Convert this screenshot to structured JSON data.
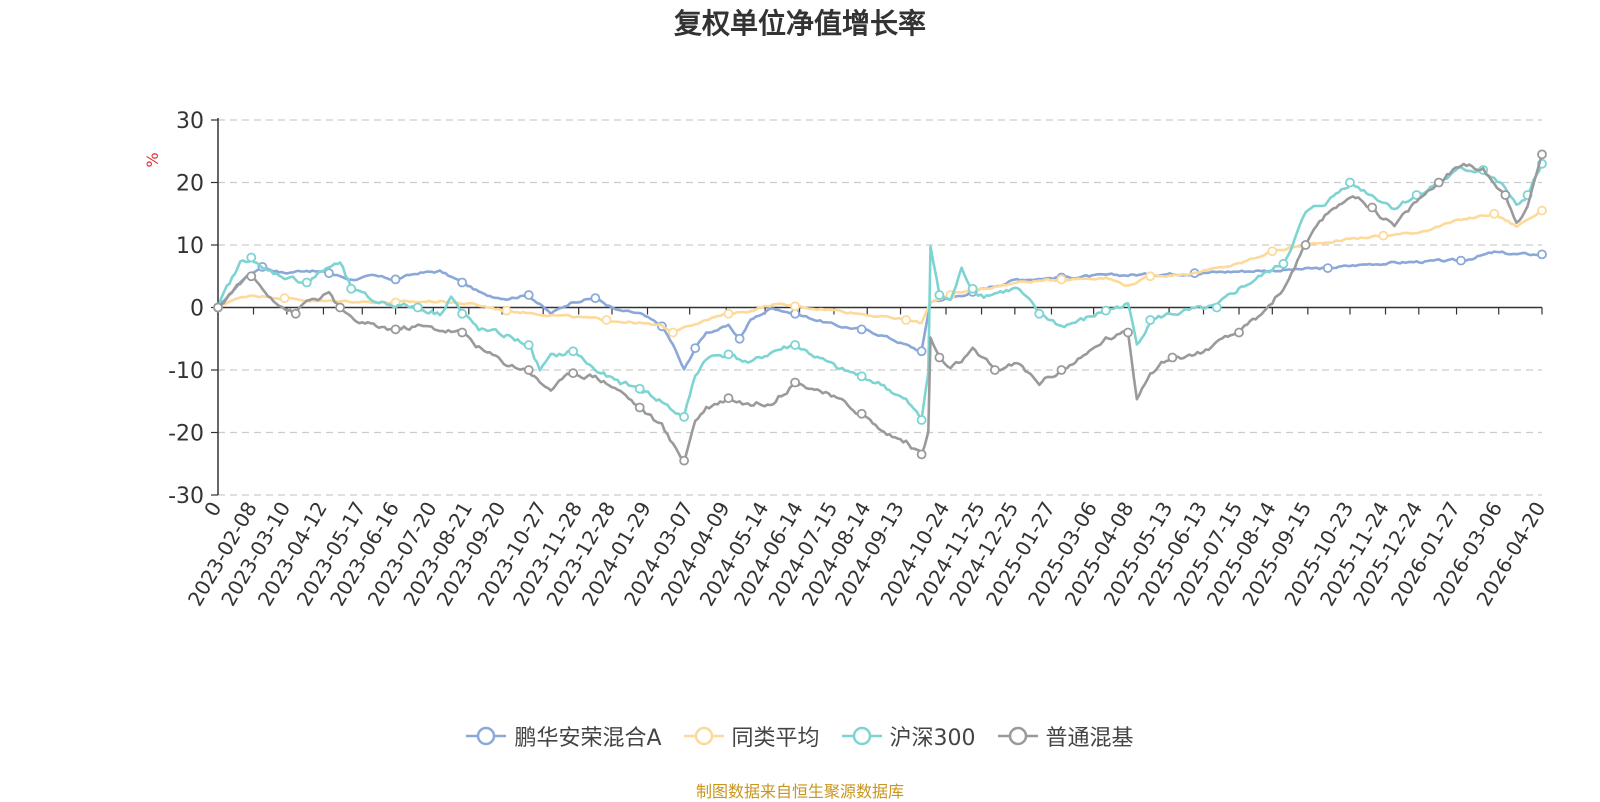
{
  "chart_data": {
    "type": "line",
    "title": "复权单位净值增长率",
    "ylabel": "%",
    "ylim": [
      -30,
      30
    ],
    "yticks": [
      30,
      20,
      10,
      0,
      -10,
      -20,
      -30
    ],
    "grid": true,
    "legend_position": "bottom",
    "x_start": 0,
    "x_end": 1193,
    "x_ticks": [
      "0",
      "2023-02-08",
      "2023-03-10",
      "2023-04-12",
      "2023-05-17",
      "2023-06-16",
      "2023-07-20",
      "2023-08-21",
      "2023-09-20",
      "2023-10-27",
      "2023-11-28",
      "2023-12-28",
      "2024-01-29",
      "2024-03-07",
      "2024-04-09",
      "2024-05-14",
      "2024-06-14",
      "2024-07-15",
      "2024-08-14",
      "2024-09-13",
      "2024-10-24",
      "2024-11-25",
      "2024-12-25",
      "2025-01-27",
      "2025-03-06",
      "2025-04-08",
      "2025-05-13",
      "2025-06-13",
      "2025-07-15",
      "2025-08-14",
      "2025-09-15",
      "2025-10-23",
      "2025-11-24",
      "2025-12-24",
      "2026-01-27",
      "2026-03-06",
      "2026-04-20"
    ],
    "x_tick_positions": [
      0,
      32,
      62,
      95,
      130,
      160,
      194,
      226,
      256,
      293,
      325,
      355,
      387,
      425,
      458,
      493,
      524,
      555,
      585,
      615,
      656,
      688,
      718,
      751,
      789,
      822,
      857,
      888,
      920,
      950,
      982,
      1020,
      1052,
      1082,
      1116,
      1154,
      1193
    ],
    "series": [
      {
        "name": "鹏华安荣混合A",
        "color": "#8aa8d8",
        "points": [
          [
            0,
            0
          ],
          [
            15,
            3
          ],
          [
            25,
            5
          ],
          [
            40,
            6.5
          ],
          [
            60,
            5.5
          ],
          [
            80,
            6
          ],
          [
            100,
            5.5
          ],
          [
            120,
            4.5
          ],
          [
            140,
            5
          ],
          [
            160,
            4.5
          ],
          [
            180,
            5.5
          ],
          [
            200,
            5.8
          ],
          [
            220,
            4
          ],
          [
            240,
            2
          ],
          [
            260,
            1.5
          ],
          [
            280,
            2
          ],
          [
            300,
            -1
          ],
          [
            320,
            1
          ],
          [
            340,
            1.5
          ],
          [
            360,
            -0.5
          ],
          [
            380,
            -1
          ],
          [
            400,
            -3
          ],
          [
            410,
            -6
          ],
          [
            420,
            -10
          ],
          [
            430,
            -6.5
          ],
          [
            440,
            -4
          ],
          [
            460,
            -3
          ],
          [
            470,
            -5
          ],
          [
            480,
            -2
          ],
          [
            500,
            0
          ],
          [
            520,
            -1
          ],
          [
            540,
            -2
          ],
          [
            560,
            -3
          ],
          [
            580,
            -3.5
          ],
          [
            600,
            -4.5
          ],
          [
            620,
            -6
          ],
          [
            634,
            -7
          ],
          [
            642,
            1
          ],
          [
            660,
            1.5
          ],
          [
            680,
            2.5
          ],
          [
            700,
            3.5
          ],
          [
            720,
            4.5
          ],
          [
            760,
            4.8
          ],
          [
            800,
            5.1
          ],
          [
            840,
            5.3
          ],
          [
            880,
            5.5
          ],
          [
            920,
            5.8
          ],
          [
            960,
            6
          ],
          [
            1000,
            6.3
          ],
          [
            1040,
            7
          ],
          [
            1080,
            7.3
          ],
          [
            1120,
            7.5
          ],
          [
            1150,
            8.8
          ],
          [
            1170,
            8.5
          ],
          [
            1193,
            8.5
          ]
        ]
      },
      {
        "name": "同类平均",
        "color": "#fdd99a",
        "points": [
          [
            0,
            0
          ],
          [
            10,
            1
          ],
          [
            30,
            2
          ],
          [
            60,
            1.5
          ],
          [
            90,
            1
          ],
          [
            120,
            1
          ],
          [
            160,
            0.8
          ],
          [
            200,
            1
          ],
          [
            230,
            0.5
          ],
          [
            260,
            -0.5
          ],
          [
            290,
            -1
          ],
          [
            320,
            -1.5
          ],
          [
            350,
            -2
          ],
          [
            380,
            -2.5
          ],
          [
            400,
            -3
          ],
          [
            410,
            -4
          ],
          [
            420,
            -3
          ],
          [
            440,
            -2
          ],
          [
            460,
            -1
          ],
          [
            480,
            -0.5
          ],
          [
            500,
            0.5
          ],
          [
            520,
            0.2
          ],
          [
            560,
            -0.5
          ],
          [
            600,
            -1.5
          ],
          [
            620,
            -2
          ],
          [
            634,
            -2.5
          ],
          [
            642,
            1
          ],
          [
            660,
            2
          ],
          [
            690,
            3
          ],
          [
            720,
            4
          ],
          [
            760,
            4.5
          ],
          [
            800,
            4.8
          ],
          [
            820,
            3.5
          ],
          [
            840,
            5
          ],
          [
            880,
            5.5
          ],
          [
            920,
            7
          ],
          [
            950,
            9
          ],
          [
            980,
            10
          ],
          [
            1020,
            11
          ],
          [
            1050,
            11.5
          ],
          [
            1080,
            12
          ],
          [
            1120,
            14
          ],
          [
            1150,
            15
          ],
          [
            1170,
            13
          ],
          [
            1193,
            15.5
          ]
        ]
      },
      {
        "name": "沪深300",
        "color": "#7dd4d2",
        "points": [
          [
            0,
            0
          ],
          [
            8,
            3
          ],
          [
            20,
            7
          ],
          [
            30,
            8
          ],
          [
            40,
            6
          ],
          [
            60,
            5
          ],
          [
            80,
            4
          ],
          [
            100,
            6.5
          ],
          [
            110,
            7
          ],
          [
            120,
            3
          ],
          [
            140,
            1
          ],
          [
            160,
            0.5
          ],
          [
            180,
            0
          ],
          [
            200,
            -1
          ],
          [
            210,
            2
          ],
          [
            220,
            -1
          ],
          [
            235,
            -3.5
          ],
          [
            260,
            -4.5
          ],
          [
            280,
            -6
          ],
          [
            290,
            -10
          ],
          [
            300,
            -8
          ],
          [
            320,
            -7
          ],
          [
            340,
            -10
          ],
          [
            360,
            -12
          ],
          [
            380,
            -13
          ],
          [
            400,
            -15
          ],
          [
            410,
            -16.5
          ],
          [
            420,
            -17.5
          ],
          [
            430,
            -11
          ],
          [
            440,
            -8
          ],
          [
            460,
            -7.5
          ],
          [
            480,
            -9
          ],
          [
            500,
            -7
          ],
          [
            520,
            -6
          ],
          [
            540,
            -8
          ],
          [
            560,
            -10
          ],
          [
            580,
            -11
          ],
          [
            600,
            -12.5
          ],
          [
            620,
            -15
          ],
          [
            634,
            -18
          ],
          [
            640,
            -10
          ],
          [
            642,
            10
          ],
          [
            650,
            2
          ],
          [
            660,
            1
          ],
          [
            670,
            6
          ],
          [
            680,
            3
          ],
          [
            690,
            2
          ],
          [
            720,
            3
          ],
          [
            740,
            -1
          ],
          [
            760,
            -3
          ],
          [
            780,
            -2
          ],
          [
            800,
            -0.5
          ],
          [
            820,
            0.5
          ],
          [
            828,
            -6
          ],
          [
            840,
            -2
          ],
          [
            860,
            -1
          ],
          [
            880,
            -0.5
          ],
          [
            900,
            0
          ],
          [
            920,
            3
          ],
          [
            940,
            5
          ],
          [
            960,
            7
          ],
          [
            980,
            15
          ],
          [
            1000,
            17
          ],
          [
            1020,
            20
          ],
          [
            1040,
            18
          ],
          [
            1060,
            16
          ],
          [
            1080,
            18
          ],
          [
            1100,
            20
          ],
          [
            1120,
            22
          ],
          [
            1140,
            22
          ],
          [
            1160,
            19
          ],
          [
            1170,
            16
          ],
          [
            1180,
            18
          ],
          [
            1193,
            23
          ]
        ]
      },
      {
        "name": "普通混基",
        "color": "#9a9a9a",
        "points": [
          [
            0,
            0
          ],
          [
            10,
            2
          ],
          [
            20,
            4
          ],
          [
            30,
            5
          ],
          [
            40,
            3
          ],
          [
            60,
            0
          ],
          [
            70,
            -1
          ],
          [
            80,
            1
          ],
          [
            100,
            2
          ],
          [
            110,
            0
          ],
          [
            120,
            -2
          ],
          [
            140,
            -3
          ],
          [
            160,
            -3.5
          ],
          [
            180,
            -3
          ],
          [
            200,
            -3.5
          ],
          [
            220,
            -4
          ],
          [
            240,
            -7
          ],
          [
            260,
            -9
          ],
          [
            280,
            -10
          ],
          [
            290,
            -12
          ],
          [
            300,
            -13
          ],
          [
            320,
            -10.5
          ],
          [
            340,
            -11
          ],
          [
            360,
            -13
          ],
          [
            380,
            -16
          ],
          [
            400,
            -19
          ],
          [
            410,
            -22
          ],
          [
            420,
            -24.5
          ],
          [
            430,
            -18
          ],
          [
            440,
            -16
          ],
          [
            460,
            -14.5
          ],
          [
            480,
            -15.5
          ],
          [
            500,
            -15
          ],
          [
            520,
            -12
          ],
          [
            540,
            -13
          ],
          [
            560,
            -15
          ],
          [
            580,
            -17
          ],
          [
            600,
            -20
          ],
          [
            620,
            -21.5
          ],
          [
            634,
            -23.5
          ],
          [
            640,
            -20
          ],
          [
            642,
            -5
          ],
          [
            650,
            -8
          ],
          [
            660,
            -10
          ],
          [
            680,
            -7
          ],
          [
            700,
            -10
          ],
          [
            720,
            -9
          ],
          [
            740,
            -12
          ],
          [
            760,
            -10
          ],
          [
            780,
            -8
          ],
          [
            800,
            -5
          ],
          [
            820,
            -4
          ],
          [
            828,
            -14.5
          ],
          [
            840,
            -10
          ],
          [
            860,
            -8
          ],
          [
            880,
            -7.5
          ],
          [
            900,
            -6
          ],
          [
            920,
            -4
          ],
          [
            940,
            -1
          ],
          [
            960,
            3
          ],
          [
            980,
            10
          ],
          [
            1000,
            15
          ],
          [
            1020,
            18
          ],
          [
            1040,
            16
          ],
          [
            1060,
            13
          ],
          [
            1080,
            17
          ],
          [
            1100,
            20
          ],
          [
            1120,
            23
          ],
          [
            1140,
            22
          ],
          [
            1160,
            18
          ],
          [
            1170,
            14
          ],
          [
            1180,
            16
          ],
          [
            1193,
            24.5
          ]
        ]
      }
    ]
  },
  "legend": {
    "items": [
      {
        "label": "鹏华安荣混合A",
        "color": "#8aa8d8"
      },
      {
        "label": "同类平均",
        "color": "#fdd99a"
      },
      {
        "label": "沪深300",
        "color": "#7dd4d2"
      },
      {
        "label": "普通混基",
        "color": "#9a9a9a"
      }
    ]
  },
  "footer": {
    "source_text": "制图数据来自恒生聚源数据库",
    "source_color": "#c8961e",
    "ylabel_color": "#e03030"
  }
}
